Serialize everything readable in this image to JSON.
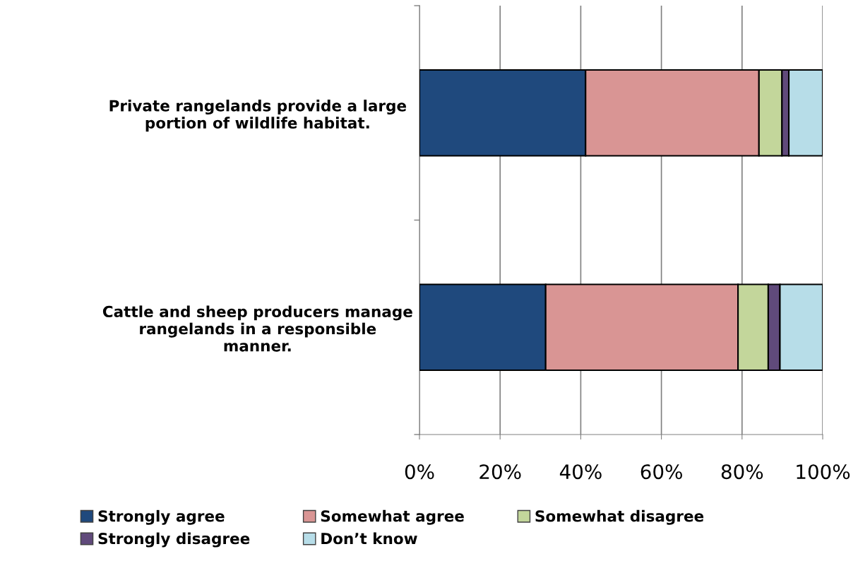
{
  "chart_data": {
    "type": "bar",
    "orientation": "horizontal",
    "stacked": true,
    "categories": [
      "Private rangelands provide a large portion of wildlife habitat.",
      "Cattle and sheep producers manage rangelands in a responsible manner."
    ],
    "series": [
      {
        "name": "Strongly agree",
        "color": "#1f497d",
        "values": [
          41.2,
          31.3
        ]
      },
      {
        "name": "Somewhat agree",
        "color": "#d99594",
        "values": [
          43.0,
          47.7
        ]
      },
      {
        "name": "Somewhat disagree",
        "color": "#c3d69b",
        "values": [
          5.7,
          7.5
        ]
      },
      {
        "name": "Strongly disagree",
        "color": "#604a7b",
        "values": [
          1.7,
          2.9
        ]
      },
      {
        "name": "Don’t know",
        "color": "#b7dde8",
        "values": [
          8.4,
          10.6
        ]
      }
    ],
    "xlim": [
      0,
      100
    ],
    "xticks": [
      {
        "value": 0,
        "label": "0%"
      },
      {
        "value": 20,
        "label": "20%"
      },
      {
        "value": 40,
        "label": "40%"
      },
      {
        "value": 60,
        "label": "60%"
      },
      {
        "value": 80,
        "label": "80%"
      },
      {
        "value": 100,
        "label": "100%"
      }
    ],
    "grid": "x",
    "legend": "bottom"
  }
}
